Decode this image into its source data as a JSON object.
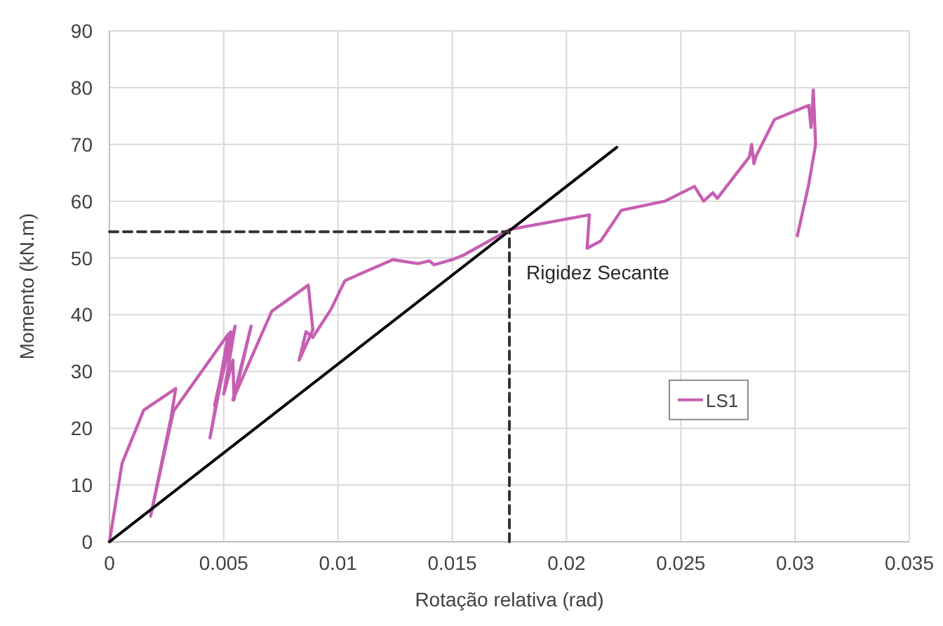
{
  "chart_data": {
    "type": "line",
    "xlabel": "Rotação relativa (rad)",
    "ylabel": "Momento (kN.m)",
    "xlim": [
      0,
      0.035
    ],
    "xticks": [
      {
        "value": 0,
        "label": "0"
      },
      0.005,
      0.01,
      0.015,
      0.02,
      0.025,
      0.03,
      0.035
    ],
    "ylim": [
      0,
      90
    ],
    "yticks": [
      0,
      10,
      20,
      30,
      40,
      50,
      60,
      70,
      80,
      90
    ],
    "grid": true,
    "legend": "right",
    "annotations": [
      "Rigidez Secante"
    ],
    "series": [
      {
        "name": "LS1",
        "color": "#c65fb2",
        "x": [
          0,
          0.00055,
          0.0015,
          0.0029,
          0.0027,
          0.0018,
          0.0028,
          0.0052,
          0.0044,
          0.0053,
          0.0046,
          0.0055,
          0.005,
          0.0054,
          0.00545,
          0.0062,
          0.0054,
          0.0071,
          0.0087,
          0.0089,
          0.0083,
          0.0086,
          0.0089,
          0.0097,
          0.0103,
          0.0124,
          0.0135,
          0.014,
          0.0142,
          0.015,
          0.0155,
          0.0175,
          0.021,
          0.0209,
          0.0215,
          0.0224,
          0.0243,
          0.0256,
          0.026,
          0.0264,
          0.0266,
          0.028,
          0.0281,
          0.0282,
          0.0283,
          0.0291,
          0.0306,
          0.0307,
          0.0308,
          0.0309,
          0.0306,
          0.0301
        ],
        "values": [
          0,
          13.8,
          23.2,
          27,
          22,
          4.5,
          23,
          36.6,
          18.3,
          37,
          24,
          38,
          26,
          32,
          25,
          38,
          25,
          40.6,
          45.2,
          37.3,
          32,
          37,
          36,
          41,
          46,
          49.7,
          49,
          49.5,
          48.8,
          49.7,
          50.5,
          55,
          57.6,
          51.7,
          53,
          58.4,
          60,
          62.6,
          60,
          61.5,
          60.5,
          67.8,
          70,
          66.6,
          68,
          74.4,
          76.9,
          73,
          79.6,
          70,
          63,
          53.9
        ]
      },
      {
        "color": "#000000",
        "x": [
          0,
          0.0222
        ],
        "values": [
          0,
          69.5
        ]
      },
      {
        "color": "#333333",
        "line_style": "dashed",
        "x": [
          0,
          0.0175,
          0.0175
        ],
        "values": [
          54.6,
          54.6,
          0
        ]
      }
    ]
  }
}
